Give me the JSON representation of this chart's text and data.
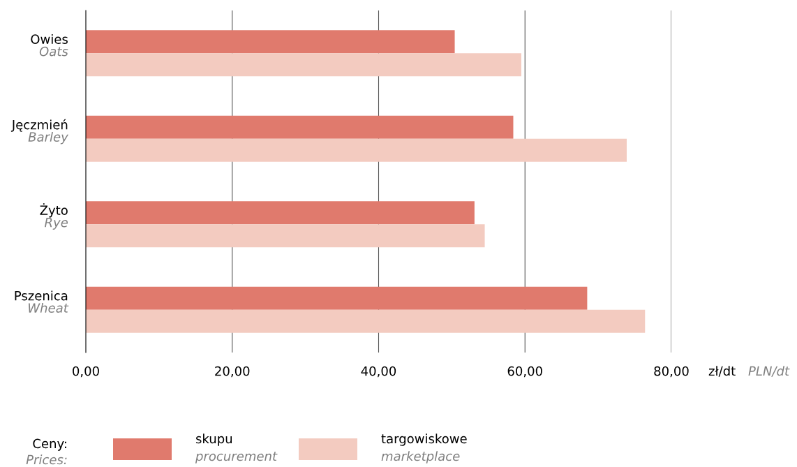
{
  "chart_data": {
    "type": "bar",
    "orientation": "horizontal",
    "categories": [
      "Owies\nOats",
      "Jęczmień\nBarley",
      "Żyto\nRye",
      "Pszenica\nWheat"
    ],
    "series": [
      {
        "name": "skupu\nprocurement",
        "color": "#e07a6d",
        "values": [
          50.4,
          58.4,
          53.1,
          68.5
        ]
      },
      {
        "name": "targowiskowe\nmarketplace",
        "color": "#f3cbc0",
        "values": [
          59.5,
          73.9,
          54.5,
          76.4
        ]
      }
    ],
    "xlabel": "zł/dt\nPLN/dt",
    "legend_title": "Ceny:\nPrices:",
    "xlim": [
      0,
      80
    ],
    "xticks": [
      {
        "value": 0,
        "label": "0,00"
      },
      {
        "value": 20,
        "label": "20,00"
      },
      {
        "value": 40,
        "label": "40,00"
      },
      {
        "value": 60,
        "label": "60,00"
      },
      {
        "value": 80,
        "label": "80,00"
      }
    ],
    "grid": "x",
    "legend": "bottom"
  }
}
